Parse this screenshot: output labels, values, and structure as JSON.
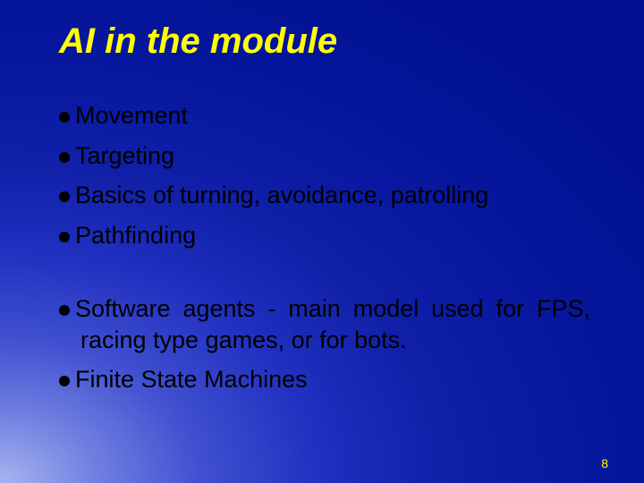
{
  "title": "AI in the module",
  "group1": [
    "Movement",
    "Targeting",
    "Basics of turning, avoidance, patrolling",
    "Pathfinding"
  ],
  "group2": [
    "Software agents - main model used for FPS, racing type games, or for bots.",
    "Finite State Machines"
  ],
  "pageNumber": "8",
  "colors": {
    "title": "#ffff00",
    "text": "#000000",
    "pageNumber": "#ffff00"
  },
  "fontSizes": {
    "title_pt": 40,
    "bullet_pt": 27,
    "pagenum_pt": 14
  }
}
